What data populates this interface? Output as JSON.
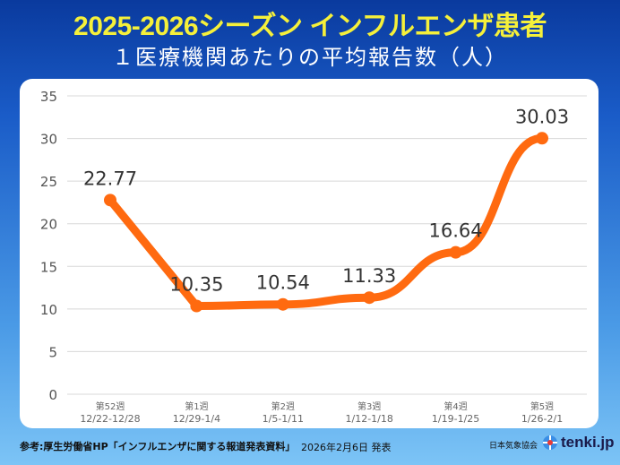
{
  "header": {
    "title": "2025-2026シーズン インフルエンザ患者",
    "subtitle": "１医療機関あたりの平均報告数（人）"
  },
  "chart_data": {
    "type": "line",
    "title": "2025-2026シーズン インフルエンザ患者",
    "subtitle": "１医療機関あたりの平均報告数（人）",
    "categories": [
      {
        "week": "第52週",
        "range": "12/22-12/28"
      },
      {
        "week": "第1週",
        "range": "12/29-1/4"
      },
      {
        "week": "第2週",
        "range": "1/5-1/11"
      },
      {
        "week": "第3週",
        "range": "1/12-1/18"
      },
      {
        "week": "第4週",
        "range": "1/19-1/25"
      },
      {
        "week": "第5週",
        "range": "1/26-2/1"
      }
    ],
    "values": [
      22.77,
      10.35,
      10.54,
      11.33,
      16.64,
      30.03
    ],
    "data_labels": [
      "22.77",
      "10.35",
      "10.54",
      "11.33",
      "16.64",
      "30.03"
    ],
    "ylim": [
      0,
      35
    ],
    "yticks": [
      0,
      5,
      10,
      15,
      20,
      25,
      30,
      35
    ],
    "grid": true,
    "line_color": "#ff6a10",
    "xlabel": "",
    "ylabel": ""
  },
  "footer": {
    "source": "参考:厚生労働省HP「インフルエンザに関する報道発表資料」",
    "date": "2026年2月6日 発表",
    "org": "日本気象協会",
    "logo": "tenki.jp"
  }
}
